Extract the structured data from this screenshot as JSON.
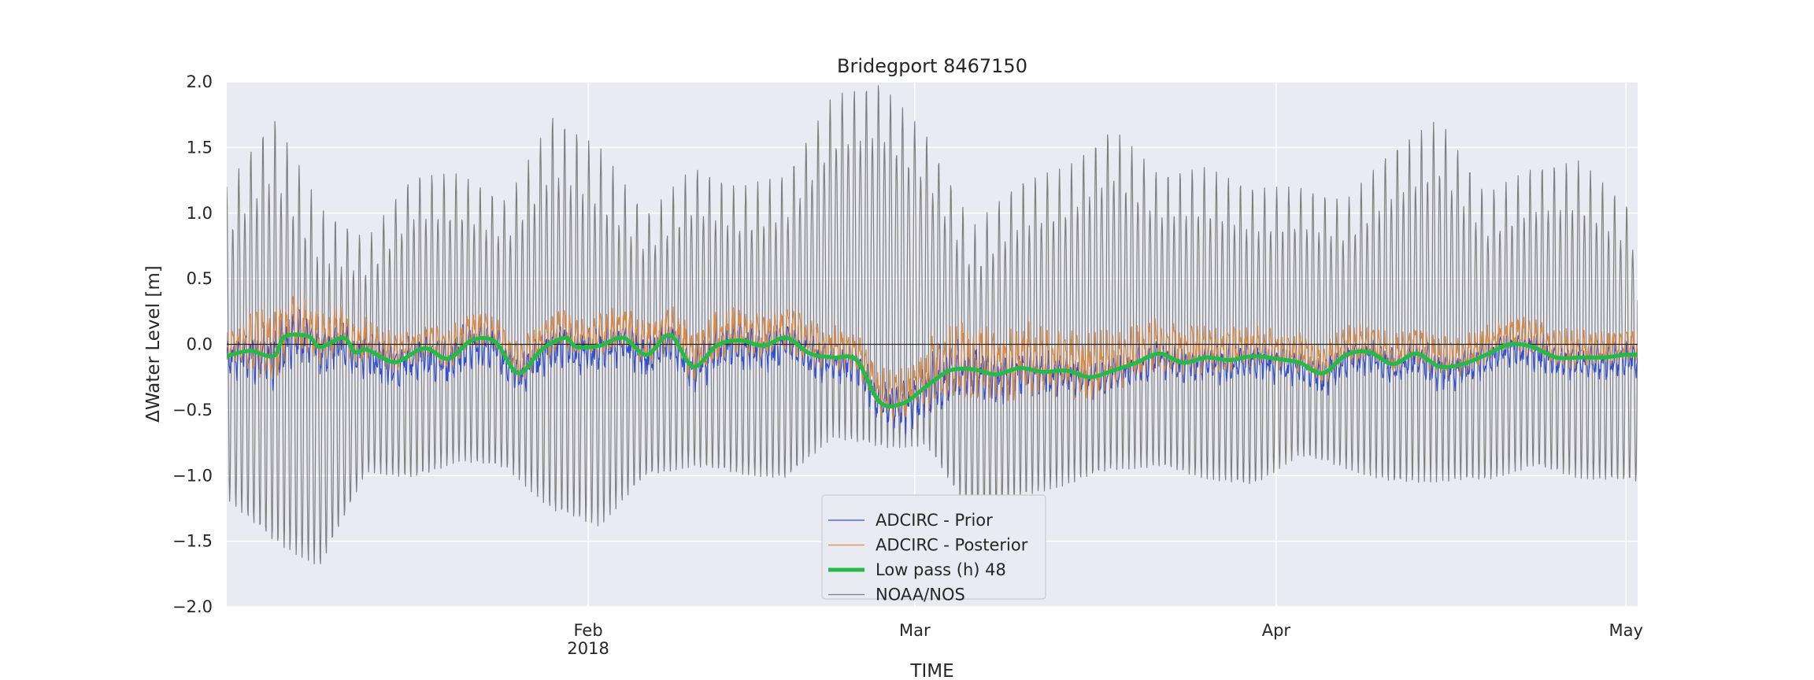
{
  "chart_data": {
    "type": "line",
    "title": "Bridegport  8467150",
    "xlabel": "TIME",
    "ylabel": "ΔWater Level [m]",
    "xlim": [
      "2018-01-01",
      "2018-05-02"
    ],
    "ylim": [
      -2.0,
      2.0
    ],
    "y_ticks": [
      -2.0,
      -1.5,
      -1.0,
      -0.5,
      0.0,
      0.5,
      1.0,
      1.5,
      2.0
    ],
    "y_tick_labels": [
      "−2.0",
      "−1.5",
      "−1.0",
      "−0.5",
      "0.0",
      "0.5",
      "1.0",
      "1.5",
      "2.0"
    ],
    "x_ticks": [
      {
        "date": "2018-02-01",
        "label": "Feb",
        "sublabel": "2018"
      },
      {
        "date": "2018-03-01",
        "label": "Mar",
        "sublabel": ""
      },
      {
        "date": "2018-04-01",
        "label": "Apr",
        "sublabel": ""
      },
      {
        "date": "2018-05-01",
        "label": "May",
        "sublabel": ""
      }
    ],
    "grid": true,
    "zero_line": true,
    "legend_placement": "bottom-center",
    "colors": {
      "prior": "#2d4fd8",
      "posterior": "#dd8a3e",
      "lowpass": "#22bb44",
      "noaa": "#7f7f7f",
      "background": "#eaeaf2"
    },
    "series": [
      {
        "name": "ADCIRC - Prior",
        "key": "prior",
        "linewidth": 1.2
      },
      {
        "name": "ADCIRC - Posterior",
        "key": "posterior",
        "linewidth": 1.2
      },
      {
        "name": "Low pass (h) 48",
        "key": "lowpass",
        "linewidth": 5
      },
      {
        "name": "NOAA/NOS",
        "key": "noaa",
        "linewidth": 1.2
      }
    ],
    "lowpass": {
      "x": [
        "2018-01-01",
        "2018-01-03",
        "2018-01-05",
        "2018-01-06",
        "2018-01-08",
        "2018-01-09",
        "2018-01-11",
        "2018-01-12",
        "2018-01-13",
        "2018-01-15",
        "2018-01-16",
        "2018-01-18",
        "2018-01-20",
        "2018-01-22",
        "2018-01-24",
        "2018-01-26",
        "2018-01-28",
        "2018-01-30",
        "2018-01-31",
        "2018-02-02",
        "2018-02-04",
        "2018-02-06",
        "2018-02-08",
        "2018-02-10",
        "2018-02-12",
        "2018-02-14",
        "2018-02-16",
        "2018-02-18",
        "2018-02-20",
        "2018-02-22",
        "2018-02-24",
        "2018-02-26",
        "2018-02-28",
        "2018-03-02",
        "2018-03-04",
        "2018-03-06",
        "2018-03-08",
        "2018-03-10",
        "2018-03-12",
        "2018-03-14",
        "2018-03-16",
        "2018-03-18",
        "2018-03-20",
        "2018-03-22",
        "2018-03-24",
        "2018-03-26",
        "2018-03-28",
        "2018-03-30",
        "2018-04-01",
        "2018-04-03",
        "2018-04-05",
        "2018-04-07",
        "2018-04-09",
        "2018-04-11",
        "2018-04-13",
        "2018-04-15",
        "2018-04-17",
        "2018-04-19",
        "2018-04-21",
        "2018-04-23",
        "2018-04-25",
        "2018-04-27",
        "2018-04-29",
        "2018-05-01",
        "2018-05-02"
      ],
      "y": [
        -0.09,
        -0.05,
        -0.09,
        0.06,
        0.06,
        -0.02,
        0.05,
        -0.06,
        -0.04,
        -0.13,
        -0.12,
        -0.03,
        -0.11,
        0.03,
        0.02,
        -0.22,
        -0.04,
        0.05,
        -0.02,
        -0.01,
        0.05,
        -0.08,
        0.07,
        -0.17,
        -0.01,
        0.03,
        -0.01,
        0.05,
        -0.07,
        -0.1,
        -0.12,
        -0.44,
        -0.45,
        -0.32,
        -0.2,
        -0.19,
        -0.23,
        -0.18,
        -0.21,
        -0.2,
        -0.25,
        -0.2,
        -0.14,
        -0.07,
        -0.14,
        -0.1,
        -0.12,
        -0.09,
        -0.11,
        -0.14,
        -0.22,
        -0.08,
        -0.06,
        -0.15,
        -0.07,
        -0.17,
        -0.15,
        -0.08,
        0.0,
        -0.02,
        -0.1,
        -0.1,
        -0.1,
        -0.08,
        -0.08
      ]
    },
    "noaa_envelope": {
      "x": [
        "2018-01-01",
        "2018-01-05",
        "2018-01-09",
        "2018-01-13",
        "2018-01-17",
        "2018-01-21",
        "2018-01-25",
        "2018-01-29",
        "2018-02-02",
        "2018-02-06",
        "2018-02-10",
        "2018-02-14",
        "2018-02-18",
        "2018-02-22",
        "2018-02-26",
        "2018-03-02",
        "2018-03-06",
        "2018-03-10",
        "2018-03-14",
        "2018-03-18",
        "2018-03-22",
        "2018-03-26",
        "2018-03-30",
        "2018-04-03",
        "2018-04-07",
        "2018-04-11",
        "2018-04-15",
        "2018-04-19",
        "2018-04-23",
        "2018-04-27",
        "2018-05-02"
      ],
      "high": [
        1.2,
        1.75,
        1.05,
        0.8,
        1.3,
        1.3,
        1.1,
        1.75,
        1.5,
        1.0,
        1.35,
        1.2,
        1.3,
        1.9,
        2.0,
        1.6,
        0.9,
        1.25,
        1.35,
        1.65,
        1.3,
        1.35,
        1.2,
        1.2,
        1.1,
        1.5,
        1.72,
        1.15,
        1.35,
        1.4,
        1.0
      ],
      "low": [
        -1.35,
        -1.75,
        -1.9,
        -1.1,
        -1.2,
        -1.05,
        -1.1,
        -1.5,
        -1.6,
        -1.15,
        -1.1,
        -1.15,
        -1.2,
        -0.9,
        -1.0,
        -0.95,
        -1.5,
        -1.35,
        -1.25,
        -1.15,
        -1.1,
        -1.2,
        -1.25,
        -1.0,
        -1.1,
        -1.25,
        -1.25,
        -1.2,
        -1.1,
        -1.2,
        -1.2
      ]
    },
    "residual_amplitude": {
      "x": [
        "2018-01-01",
        "2018-01-05",
        "2018-01-08",
        "2018-01-15",
        "2018-01-25",
        "2018-02-01",
        "2018-02-10",
        "2018-02-18",
        "2018-02-25",
        "2018-03-03",
        "2018-03-08",
        "2018-03-15",
        "2018-03-22",
        "2018-04-01",
        "2018-04-10",
        "2018-04-20",
        "2018-05-02"
      ],
      "prior": [
        0.12,
        0.2,
        0.18,
        0.15,
        0.15,
        0.14,
        0.16,
        0.14,
        0.12,
        0.22,
        0.16,
        0.12,
        0.12,
        0.12,
        0.13,
        0.12,
        0.12
      ],
      "posterior": [
        0.12,
        0.3,
        0.2,
        0.15,
        0.15,
        0.16,
        0.2,
        0.18,
        0.15,
        0.28,
        0.28,
        0.26,
        0.2,
        0.15,
        0.15,
        0.15,
        0.14
      ]
    }
  }
}
